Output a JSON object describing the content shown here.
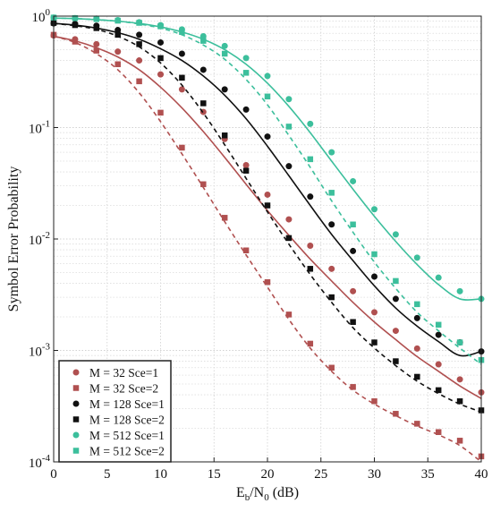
{
  "chart_data": {
    "type": "line",
    "xlabel": {
      "main": "E",
      "sub1": "b",
      "mid": "/N",
      "sub2": "0",
      "tail": " (dB)"
    },
    "ylabel": "Symbol Error Probability",
    "xlim": [
      0,
      40
    ],
    "ylim": [
      0.0001,
      1
    ],
    "y_scale": "log",
    "grid": true,
    "legend_position": "bottom-left",
    "x_ticks": [
      "0",
      "5",
      "10",
      "15",
      "20",
      "25",
      "30",
      "35",
      "40"
    ],
    "y_ticks": [
      {
        "value": 1,
        "base": "10",
        "exp": "0"
      },
      {
        "value": 0.1,
        "base": "10",
        "exp": "-1"
      },
      {
        "value": 0.01,
        "base": "10",
        "exp": "-2"
      },
      {
        "value": 0.001,
        "base": "10",
        "exp": "-3"
      },
      {
        "value": 0.0001,
        "base": "10",
        "exp": "-4"
      }
    ],
    "series": [
      {
        "name": "M = 32 Sce=1",
        "color": "#b05050",
        "marker": "circle",
        "line": "solid",
        "curve": [
          [
            0,
            0.66
          ],
          [
            2,
            0.6
          ],
          [
            4,
            0.52
          ],
          [
            6,
            0.43
          ],
          [
            8,
            0.33
          ],
          [
            10,
            0.23
          ],
          [
            12,
            0.15
          ],
          [
            14,
            0.092
          ],
          [
            16,
            0.054
          ],
          [
            18,
            0.031
          ],
          [
            20,
            0.018
          ],
          [
            22,
            0.0108
          ],
          [
            24,
            0.0066
          ],
          [
            26,
            0.0042
          ],
          [
            28,
            0.0027
          ],
          [
            30,
            0.0018
          ],
          [
            32,
            0.00125
          ],
          [
            34,
            0.00088
          ],
          [
            36,
            0.00065
          ],
          [
            38,
            0.00048
          ],
          [
            40,
            0.00037
          ]
        ],
        "points": [
          [
            0,
            0.67
          ],
          [
            2,
            0.62
          ],
          [
            4,
            0.56
          ],
          [
            6,
            0.48
          ],
          [
            8,
            0.4
          ],
          [
            10,
            0.3
          ],
          [
            12,
            0.22
          ],
          [
            14,
            0.138
          ],
          [
            16,
            0.079
          ],
          [
            18,
            0.046
          ],
          [
            20,
            0.025
          ],
          [
            22,
            0.015
          ],
          [
            24,
            0.0087
          ],
          [
            26,
            0.0054
          ],
          [
            28,
            0.0034
          ],
          [
            30,
            0.0022
          ],
          [
            32,
            0.0015
          ],
          [
            34,
            0.00104
          ],
          [
            36,
            0.00075
          ],
          [
            38,
            0.00055
          ],
          [
            40,
            0.00042
          ]
        ]
      },
      {
        "name": "M = 32 Sce=2",
        "color": "#b05050",
        "marker": "square",
        "line": "dashed",
        "curve": [
          [
            0,
            0.66
          ],
          [
            2,
            0.58
          ],
          [
            4,
            0.46
          ],
          [
            6,
            0.33
          ],
          [
            8,
            0.205
          ],
          [
            10,
            0.113
          ],
          [
            12,
            0.058
          ],
          [
            14,
            0.029
          ],
          [
            16,
            0.0143
          ],
          [
            18,
            0.0072
          ],
          [
            20,
            0.0037
          ],
          [
            22,
            0.0019
          ],
          [
            24,
            0.00105
          ],
          [
            26,
            0.00065
          ],
          [
            28,
            0.00044
          ],
          [
            30,
            0.00033
          ],
          [
            32,
            0.00026
          ],
          [
            34,
            0.00021
          ],
          [
            36,
            0.000175
          ],
          [
            38,
            0.00014
          ],
          [
            40,
            0.0001
          ]
        ],
        "points": [
          [
            0,
            0.68
          ],
          [
            2,
            0.59
          ],
          [
            4,
            0.49
          ],
          [
            6,
            0.37
          ],
          [
            8,
            0.26
          ],
          [
            10,
            0.136
          ],
          [
            12,
            0.066
          ],
          [
            14,
            0.031
          ],
          [
            16,
            0.0155
          ],
          [
            18,
            0.0079
          ],
          [
            20,
            0.0041
          ],
          [
            22,
            0.0021
          ],
          [
            24,
            0.00115
          ],
          [
            26,
            0.0007
          ],
          [
            28,
            0.00047
          ],
          [
            30,
            0.00035
          ],
          [
            32,
            0.00027
          ],
          [
            34,
            0.00022
          ],
          [
            36,
            0.000185
          ],
          [
            38,
            0.000155
          ],
          [
            40,
            0.000112
          ]
        ]
      },
      {
        "name": "M = 128 Sce=1",
        "color": "#111111",
        "marker": "circle",
        "line": "solid",
        "curve": [
          [
            0,
            0.86
          ],
          [
            2,
            0.83
          ],
          [
            4,
            0.78
          ],
          [
            6,
            0.71
          ],
          [
            8,
            0.62
          ],
          [
            10,
            0.51
          ],
          [
            12,
            0.4
          ],
          [
            14,
            0.29
          ],
          [
            16,
            0.195
          ],
          [
            18,
            0.12
          ],
          [
            20,
            0.068
          ],
          [
            22,
            0.037
          ],
          [
            24,
            0.02
          ],
          [
            26,
            0.011
          ],
          [
            28,
            0.0064
          ],
          [
            30,
            0.0038
          ],
          [
            32,
            0.0024
          ],
          [
            34,
            0.00165
          ],
          [
            36,
            0.0012
          ],
          [
            38,
            0.0009
          ],
          [
            40,
            0.00098
          ]
        ],
        "points": [
          [
            0,
            0.86
          ],
          [
            2,
            0.85
          ],
          [
            4,
            0.82
          ],
          [
            6,
            0.75
          ],
          [
            8,
            0.68
          ],
          [
            10,
            0.58
          ],
          [
            12,
            0.46
          ],
          [
            14,
            0.33
          ],
          [
            16,
            0.22
          ],
          [
            18,
            0.145
          ],
          [
            20,
            0.083
          ],
          [
            22,
            0.045
          ],
          [
            24,
            0.024
          ],
          [
            26,
            0.0135
          ],
          [
            28,
            0.0078
          ],
          [
            30,
            0.0046
          ],
          [
            32,
            0.0029
          ],
          [
            34,
            0.00195
          ],
          [
            36,
            0.00138
          ],
          [
            38,
            0.00118
          ],
          [
            40,
            0.00098
          ]
        ]
      },
      {
        "name": "M = 128 Sce=2",
        "color": "#111111",
        "marker": "square",
        "line": "dashed",
        "curve": [
          [
            0,
            0.86
          ],
          [
            2,
            0.82
          ],
          [
            4,
            0.76
          ],
          [
            6,
            0.66
          ],
          [
            8,
            0.53
          ],
          [
            10,
            0.38
          ],
          [
            12,
            0.24
          ],
          [
            14,
            0.135
          ],
          [
            16,
            0.07
          ],
          [
            18,
            0.035
          ],
          [
            20,
            0.0175
          ],
          [
            22,
            0.009
          ],
          [
            24,
            0.0048
          ],
          [
            26,
            0.0027
          ],
          [
            28,
            0.0016
          ],
          [
            30,
            0.00105
          ],
          [
            32,
            0.00073
          ],
          [
            34,
            0.00053
          ],
          [
            36,
            0.00041
          ],
          [
            38,
            0.00033
          ],
          [
            40,
            0.00028
          ]
        ],
        "points": [
          [
            0,
            0.87
          ],
          [
            2,
            0.83
          ],
          [
            4,
            0.78
          ],
          [
            6,
            0.68
          ],
          [
            8,
            0.56
          ],
          [
            10,
            0.42
          ],
          [
            12,
            0.28
          ],
          [
            14,
            0.165
          ],
          [
            16,
            0.085
          ],
          [
            18,
            0.041
          ],
          [
            20,
            0.02
          ],
          [
            22,
            0.0102
          ],
          [
            24,
            0.0054
          ],
          [
            26,
            0.003
          ],
          [
            28,
            0.0018
          ],
          [
            30,
            0.00118
          ],
          [
            32,
            0.0008
          ],
          [
            34,
            0.00058
          ],
          [
            36,
            0.00044
          ],
          [
            38,
            0.00035
          ],
          [
            40,
            0.00029
          ]
        ]
      },
      {
        "name": "M = 512 Sce=1",
        "color": "#3cbf9c",
        "marker": "circle",
        "line": "solid",
        "curve": [
          [
            0,
            0.96
          ],
          [
            2,
            0.95
          ],
          [
            4,
            0.93
          ],
          [
            6,
            0.9
          ],
          [
            8,
            0.86
          ],
          [
            10,
            0.8
          ],
          [
            12,
            0.72
          ],
          [
            14,
            0.62
          ],
          [
            16,
            0.5
          ],
          [
            18,
            0.37
          ],
          [
            20,
            0.25
          ],
          [
            22,
            0.155
          ],
          [
            24,
            0.09
          ],
          [
            26,
            0.05
          ],
          [
            28,
            0.028
          ],
          [
            30,
            0.016
          ],
          [
            32,
            0.0095
          ],
          [
            34,
            0.0059
          ],
          [
            36,
            0.0039
          ],
          [
            38,
            0.0029
          ],
          [
            40,
            0.0029
          ]
        ],
        "points": [
          [
            0,
            0.97
          ],
          [
            2,
            0.96
          ],
          [
            4,
            0.95
          ],
          [
            6,
            0.92
          ],
          [
            8,
            0.88
          ],
          [
            10,
            0.83
          ],
          [
            12,
            0.76
          ],
          [
            14,
            0.66
          ],
          [
            16,
            0.54
          ],
          [
            18,
            0.42
          ],
          [
            20,
            0.29
          ],
          [
            22,
            0.18
          ],
          [
            24,
            0.108
          ],
          [
            26,
            0.06
          ],
          [
            28,
            0.033
          ],
          [
            30,
            0.0185
          ],
          [
            32,
            0.011
          ],
          [
            34,
            0.0068
          ],
          [
            36,
            0.0045
          ],
          [
            38,
            0.0034
          ],
          [
            40,
            0.0029
          ]
        ]
      },
      {
        "name": "M = 512 Sce=2",
        "color": "#3cbf9c",
        "marker": "square",
        "line": "dashed",
        "curve": [
          [
            0,
            0.96
          ],
          [
            2,
            0.95
          ],
          [
            4,
            0.93
          ],
          [
            6,
            0.9
          ],
          [
            8,
            0.85
          ],
          [
            10,
            0.78
          ],
          [
            12,
            0.68
          ],
          [
            14,
            0.55
          ],
          [
            16,
            0.41
          ],
          [
            18,
            0.27
          ],
          [
            20,
            0.16
          ],
          [
            22,
            0.085
          ],
          [
            24,
            0.044
          ],
          [
            26,
            0.022
          ],
          [
            28,
            0.0115
          ],
          [
            30,
            0.0062
          ],
          [
            32,
            0.0036
          ],
          [
            34,
            0.0022
          ],
          [
            36,
            0.0015
          ],
          [
            38,
            0.00105
          ],
          [
            40,
            0.00075
          ]
        ],
        "points": [
          [
            0,
            0.97
          ],
          [
            2,
            0.96
          ],
          [
            4,
            0.94
          ],
          [
            6,
            0.91
          ],
          [
            8,
            0.87
          ],
          [
            10,
            0.81
          ],
          [
            12,
            0.72
          ],
          [
            14,
            0.6
          ],
          [
            16,
            0.46
          ],
          [
            18,
            0.31
          ],
          [
            20,
            0.19
          ],
          [
            22,
            0.102
          ],
          [
            24,
            0.052
          ],
          [
            26,
            0.026
          ],
          [
            28,
            0.0135
          ],
          [
            30,
            0.0073
          ],
          [
            32,
            0.0042
          ],
          [
            34,
            0.0026
          ],
          [
            36,
            0.0017
          ],
          [
            38,
            0.00118
          ],
          [
            40,
            0.00082
          ]
        ]
      }
    ]
  }
}
